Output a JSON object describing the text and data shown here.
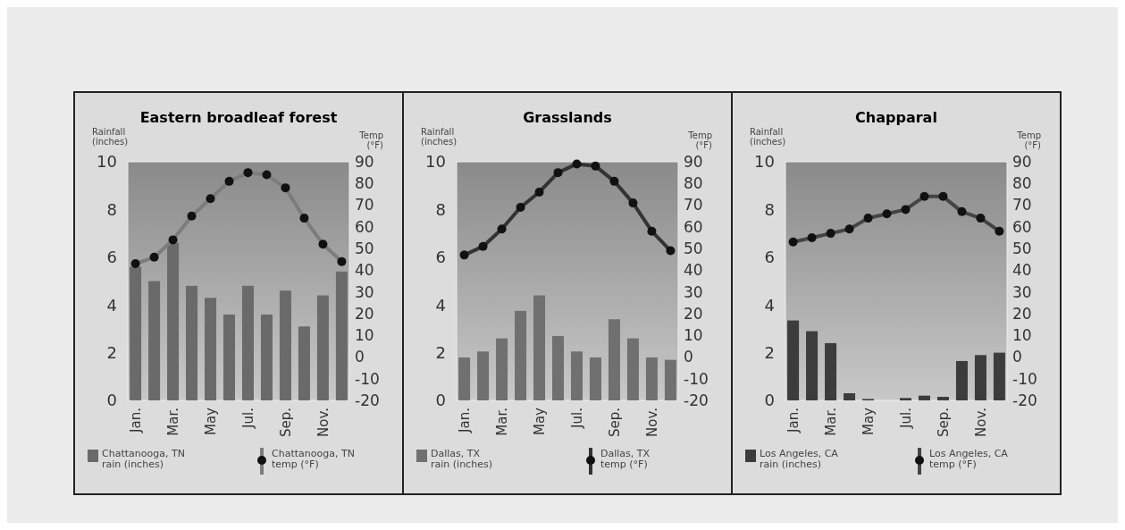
{
  "chart_data": [
    {
      "type": "bar",
      "title": "Eastern broadleaf forest",
      "ylabel": "Rainfall\n(inches)",
      "y2label": "Temp\n(°F)",
      "categories": [
        "Jan.",
        null,
        "Mar.",
        null,
        "May",
        null,
        "Jul.",
        null,
        "Sep.",
        null,
        "Nov.",
        null
      ],
      "ylim": [
        0,
        10
      ],
      "yticks": [
        0,
        2,
        4,
        6,
        8,
        10
      ],
      "y2lim": [
        -20,
        90
      ],
      "y2ticks": [
        -20,
        -10,
        0,
        10,
        20,
        30,
        40,
        50,
        60,
        70,
        80,
        90
      ],
      "grid": false,
      "legend": "bottom",
      "marker": "circle",
      "line_style": "solid",
      "series": [
        {
          "name": "Chattanooga, TN\nrain (inches)",
          "color": "#6a6a6a",
          "values": [
            5.6,
            5.0,
            6.6,
            4.8,
            4.3,
            3.6,
            4.8,
            3.6,
            4.6,
            3.1,
            4.4,
            5.4
          ]
        },
        {
          "type": "line",
          "axis": "y2",
          "name": "Chattanooga, TN\ntemp (°F)",
          "color": "#7c7c7c",
          "values": [
            43,
            46,
            54,
            65,
            73,
            81,
            85,
            84,
            78,
            64,
            52,
            44
          ]
        }
      ]
    },
    {
      "type": "bar",
      "title": "Grasslands",
      "ylabel": "Rainfall\n(inches)",
      "y2label": "Temp\n(°F)",
      "categories": [
        "Jan.",
        null,
        "Mar.",
        null,
        "May",
        null,
        "Jul.",
        null,
        "Sep.",
        null,
        "Nov.",
        null
      ],
      "ylim": [
        0,
        10
      ],
      "yticks": [
        0,
        2,
        4,
        6,
        8,
        10
      ],
      "y2lim": [
        -20,
        90
      ],
      "y2ticks": [
        -20,
        -10,
        0,
        10,
        20,
        30,
        40,
        50,
        60,
        70,
        80,
        90
      ],
      "grid": false,
      "legend": "bottom",
      "marker": "circle",
      "line_style": "solid",
      "series": [
        {
          "name": "Dallas, TX\nrain (inches)",
          "color": "#707070",
          "values": [
            1.8,
            2.05,
            2.6,
            3.75,
            4.4,
            2.7,
            2.05,
            1.8,
            3.4,
            2.6,
            1.8,
            1.7
          ]
        },
        {
          "type": "line",
          "axis": "y2",
          "name": "Dallas, TX\ntemp (°F)",
          "color": "#333333",
          "values": [
            47,
            51,
            59,
            69,
            76,
            85,
            89,
            88,
            81,
            71,
            58,
            49
          ]
        }
      ]
    },
    {
      "type": "bar",
      "title": "Chapparal",
      "ylabel": "Rainfall\n(inches)",
      "y2label": "Temp\n(°F)",
      "categories": [
        "Jan.",
        null,
        "Mar.",
        null,
        "May",
        null,
        "Jul.",
        null,
        "Sep.",
        null,
        "Nov.",
        null
      ],
      "ylim": [
        0,
        10
      ],
      "yticks": [
        0,
        2,
        4,
        6,
        8,
        10
      ],
      "y2lim": [
        -20,
        90
      ],
      "y2ticks": [
        -20,
        -10,
        0,
        10,
        20,
        30,
        40,
        50,
        60,
        70,
        80,
        90
      ],
      "grid": false,
      "legend": "bottom",
      "marker": "circle",
      "line_style": "solid",
      "series": [
        {
          "name": "Los Angeles, CA\nrain (inches)",
          "color": "#3c3c3c",
          "values": [
            3.35,
            2.9,
            2.4,
            0.3,
            0.06,
            0,
            0.1,
            0.2,
            0.15,
            1.65,
            1.9,
            2.0
          ]
        },
        {
          "type": "line",
          "axis": "y2",
          "name": "Los Angeles, CA\ntemp (°F)",
          "color": "#444444",
          "values": [
            53,
            55,
            57,
            59,
            64,
            66,
            68,
            74,
            74,
            67,
            64,
            58
          ]
        }
      ]
    }
  ]
}
